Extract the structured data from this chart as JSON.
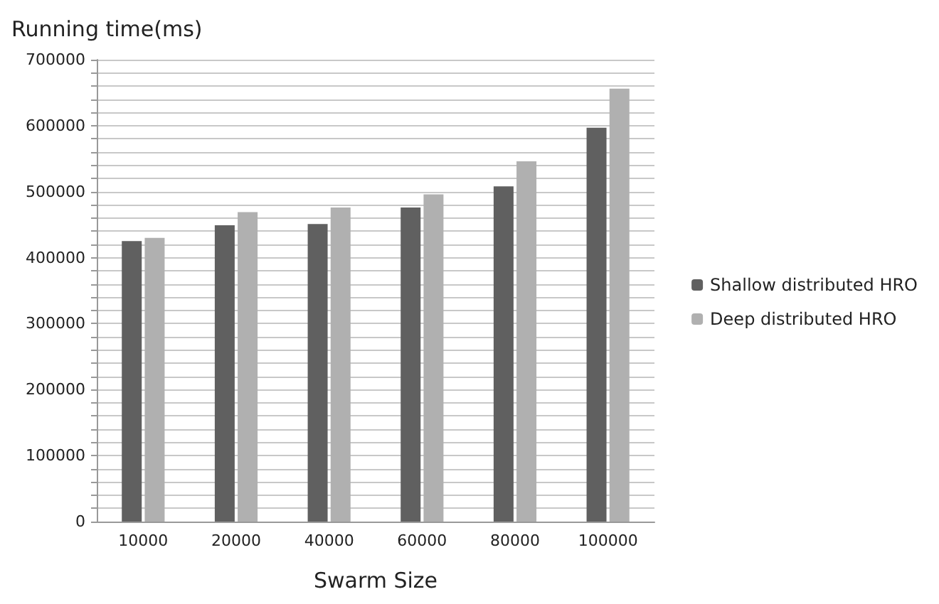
{
  "chart_data": {
    "type": "bar",
    "ylabel": "Running time(ms)",
    "xlabel": "Swarm Size",
    "categories": [
      "10000",
      "20000",
      "40000",
      "60000",
      "80000",
      "100000"
    ],
    "series": [
      {
        "name": "Shallow distributed HRO",
        "color": "#606060",
        "values": [
          425000,
          449000,
          451000,
          476000,
          508000,
          597000
        ]
      },
      {
        "name": "Deep distributed HRO",
        "color": "#b0b0b0",
        "values": [
          430000,
          469000,
          476000,
          496000,
          546000,
          656000
        ]
      }
    ],
    "ylim": [
      0,
      700000
    ],
    "yticks": [
      0,
      {
        "value": 20000,
        "label": null
      },
      {
        "value": 40000,
        "label": null
      },
      {
        "value": 60000,
        "label": null
      },
      {
        "value": 80000,
        "label": null
      },
      100000,
      {
        "value": 120000,
        "label": null
      },
      {
        "value": 140000,
        "label": null
      },
      {
        "value": 160000,
        "label": null
      },
      {
        "value": 180000,
        "label": null
      },
      200000,
      {
        "value": 220000,
        "label": null
      },
      {
        "value": 240000,
        "label": null
      },
      {
        "value": 260000,
        "label": null
      },
      {
        "value": 280000,
        "label": null
      },
      300000,
      {
        "value": 320000,
        "label": null
      },
      {
        "value": 340000,
        "label": null
      },
      {
        "value": 360000,
        "label": null
      },
      {
        "value": 380000,
        "label": null
      },
      400000,
      {
        "value": 420000,
        "label": null
      },
      {
        "value": 440000,
        "label": null
      },
      {
        "value": 460000,
        "label": null
      },
      {
        "value": 480000,
        "label": null
      },
      500000,
      {
        "value": 520000,
        "label": null
      },
      {
        "value": 540000,
        "label": null
      },
      {
        "value": 560000,
        "label": null
      },
      {
        "value": 580000,
        "label": null
      },
      600000,
      {
        "value": 620000,
        "label": null
      },
      {
        "value": 640000,
        "label": null
      },
      {
        "value": 660000,
        "label": null
      },
      {
        "value": 680000,
        "label": null
      },
      700000
    ],
    "grid": true,
    "legend": "right"
  }
}
